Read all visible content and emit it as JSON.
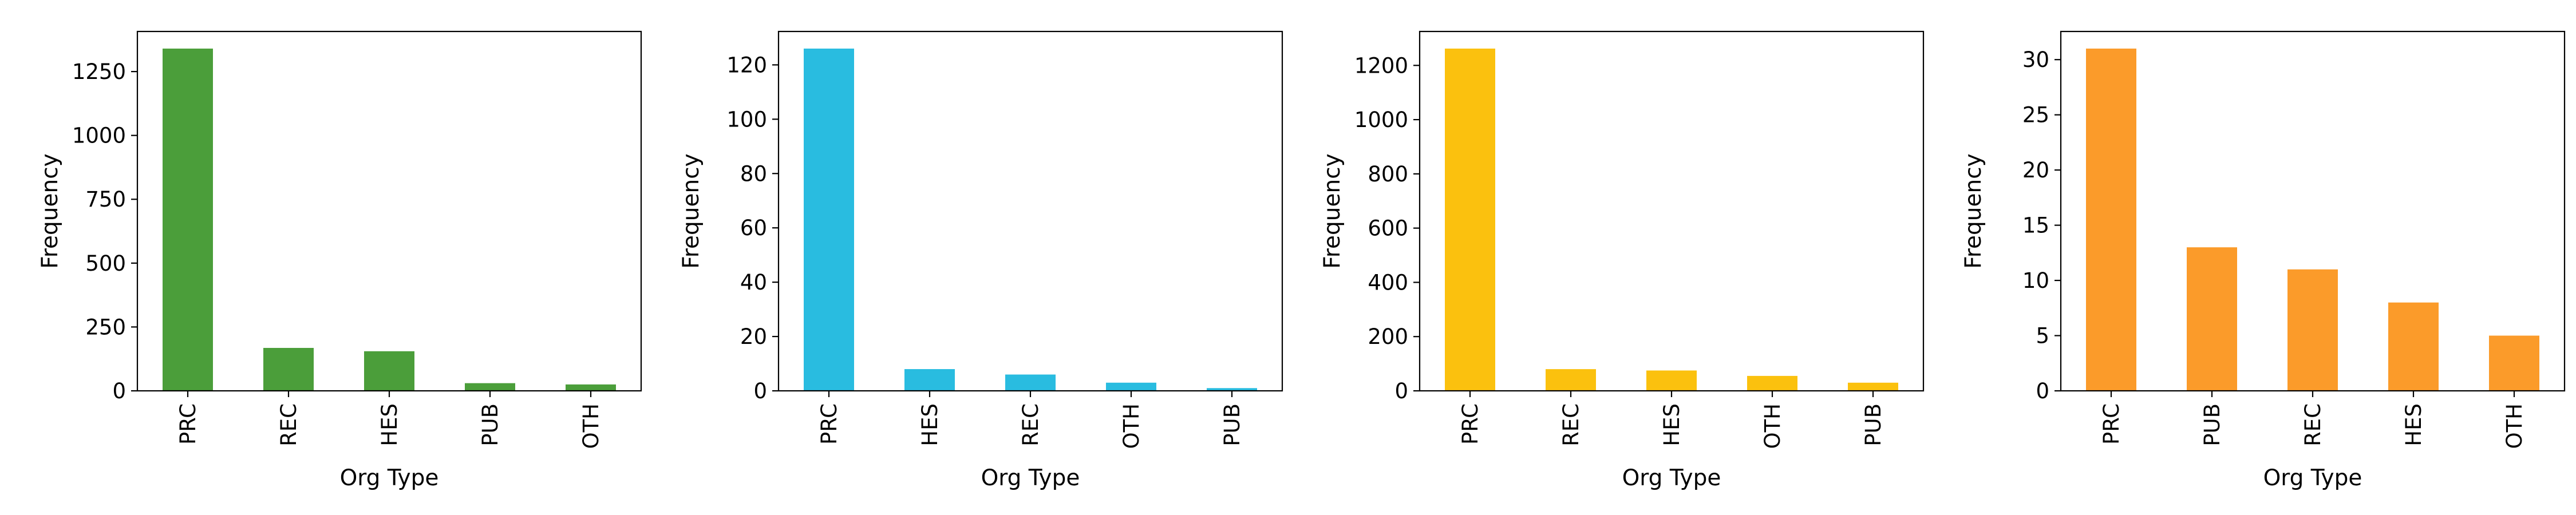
{
  "chart_data": [
    {
      "type": "bar",
      "xlabel": "Org Type",
      "ylabel": "Frequency",
      "categories": [
        "PRC",
        "REC",
        "HES",
        "PUB",
        "OTH"
      ],
      "values": [
        1340,
        168,
        155,
        30,
        25
      ],
      "ylim": [
        0,
        1407
      ],
      "yticks": [
        0,
        250,
        500,
        750,
        1000,
        1250
      ],
      "color": "#4b9e3a",
      "grid": false,
      "legend": false
    },
    {
      "type": "bar",
      "xlabel": "Org Type",
      "ylabel": "Frequency",
      "categories": [
        "PRC",
        "HES",
        "REC",
        "OTH",
        "PUB"
      ],
      "values": [
        126,
        8,
        6,
        3,
        1
      ],
      "ylim": [
        0,
        132.3
      ],
      "yticks": [
        0,
        20,
        40,
        60,
        80,
        100,
        120
      ],
      "color": "#29bce0",
      "grid": false,
      "legend": false
    },
    {
      "type": "bar",
      "xlabel": "Org Type",
      "ylabel": "Frequency",
      "categories": [
        "PRC",
        "REC",
        "HES",
        "OTH",
        "PUB"
      ],
      "values": [
        1262,
        80,
        75,
        55,
        30
      ],
      "ylim": [
        0,
        1325.1
      ],
      "yticks": [
        0,
        200,
        400,
        600,
        800,
        1000,
        1200
      ],
      "color": "#fbc10e",
      "grid": false,
      "legend": false
    },
    {
      "type": "bar",
      "xlabel": "Org Type",
      "ylabel": "Frequency",
      "categories": [
        "PRC",
        "PUB",
        "REC",
        "HES",
        "OTH"
      ],
      "values": [
        31,
        13,
        11,
        8,
        5
      ],
      "ylim": [
        0,
        32.55
      ],
      "yticks": [
        0,
        5,
        10,
        15,
        20,
        25,
        30
      ],
      "color": "#fb9b2a",
      "grid": false,
      "legend": false
    }
  ]
}
